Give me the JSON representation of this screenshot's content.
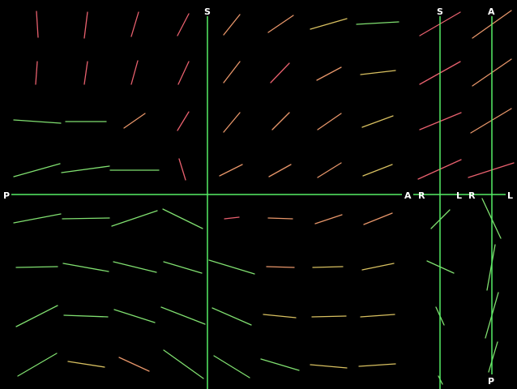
{
  "axis_labels": {
    "main_top": "S",
    "main_left": "P",
    "main_right": "A",
    "sag_top": "S",
    "sag_left": "R",
    "sag_right": "L",
    "cor_top": "A",
    "cor_left": "R",
    "cor_right": "L",
    "cor_bottom": "P"
  },
  "colors": {
    "background": "#000000",
    "axis": "#55ee66",
    "label": "#ffffff",
    "red": "#e8606e",
    "orange": "#e8966a",
    "yellow": "#d8c060",
    "green": "#80e070"
  },
  "view": "orientation field overlay"
}
